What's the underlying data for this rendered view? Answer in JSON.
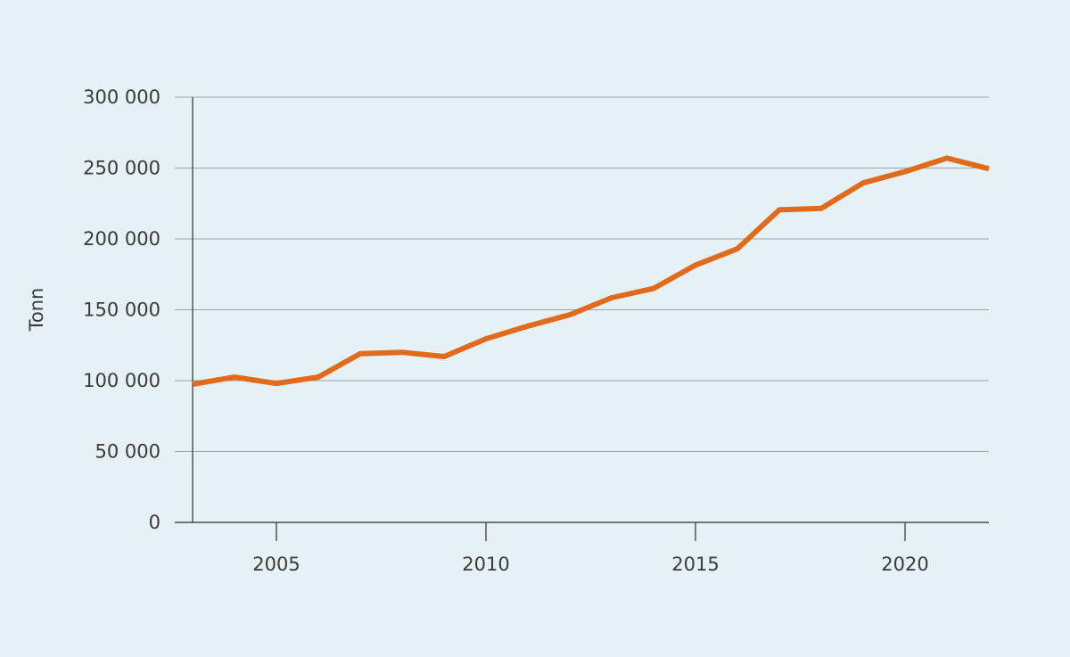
{
  "chart_data": {
    "type": "line",
    "title": "",
    "xlabel": "",
    "ylabel": "Tonn",
    "xlim": [
      2003,
      2022
    ],
    "ylim": [
      0,
      300000
    ],
    "x_ticks": [
      2005,
      2010,
      2015,
      2020
    ],
    "x_tick_labels": [
      "2005",
      "2010",
      "2015",
      "2020"
    ],
    "y_ticks": [
      0,
      50000,
      100000,
      150000,
      200000,
      250000,
      300000
    ],
    "y_tick_labels": [
      "0",
      "50 000",
      "100 000",
      "150 000",
      "200 000",
      "250 000",
      "300 000"
    ],
    "grid": "horizontal",
    "legend": "none",
    "series": [
      {
        "color": "#e06b1c",
        "x": [
          2003,
          2004,
          2005,
          2006,
          2007,
          2008,
          2009,
          2010,
          2011,
          2012,
          2013,
          2014,
          2015,
          2016,
          2017,
          2018,
          2019,
          2020,
          2021,
          2022
        ],
        "values": [
          97500,
          102500,
          98000,
          102500,
          119000,
          120000,
          117000,
          129500,
          138500,
          146500,
          158500,
          165000,
          181500,
          193000,
          220500,
          221500,
          239500,
          247500,
          257000,
          249500
        ]
      }
    ]
  },
  "colors": {
    "background": "#e6f1f5",
    "gridline": "#9aa5aa",
    "axis": "#4a4a4a",
    "line": "#e06b1c"
  }
}
